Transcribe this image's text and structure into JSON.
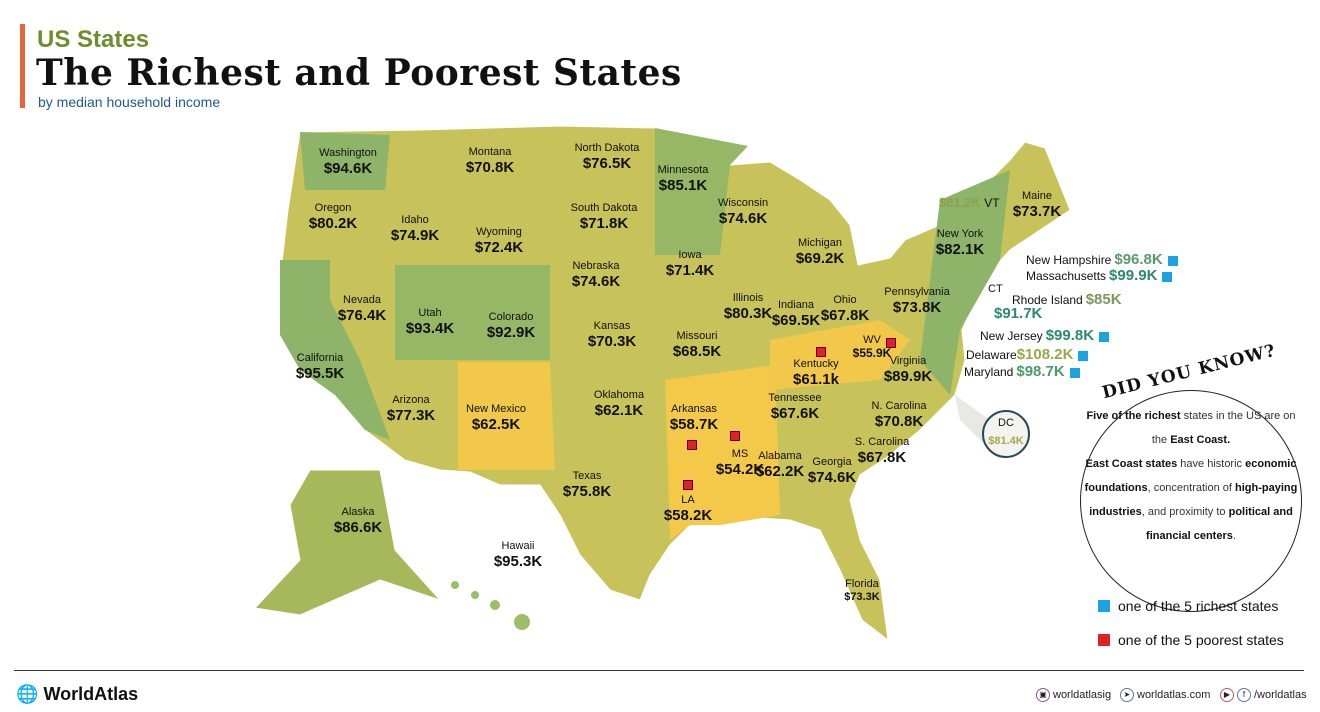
{
  "header": {
    "kicker": "US States",
    "title": "The Richest and Poorest States",
    "subtitle": "by median household income"
  },
  "colors": {
    "olive": "#c8c25a",
    "green": "#8db468",
    "yellow": "#f1c84a",
    "accent": "#e2683a",
    "rich": "#1aa3e0",
    "poor": "#e0202a"
  },
  "states": [
    {
      "name": "Washington",
      "value": "$94.6K"
    },
    {
      "name": "Oregon",
      "value": "$80.2K"
    },
    {
      "name": "California",
      "value": "$95.5K"
    },
    {
      "name": "Nevada",
      "value": "$76.4K"
    },
    {
      "name": "Idaho",
      "value": "$74.9K"
    },
    {
      "name": "Montana",
      "value": "$70.8K"
    },
    {
      "name": "Wyoming",
      "value": "$72.4K"
    },
    {
      "name": "Utah",
      "value": "$93.4K"
    },
    {
      "name": "Colorado",
      "value": "$92.9K"
    },
    {
      "name": "Arizona",
      "value": "$77.3K"
    },
    {
      "name": "New Mexico",
      "value": "$62.5K"
    },
    {
      "name": "North Dakota",
      "value": "$76.5K"
    },
    {
      "name": "South Dakota",
      "value": "$71.8K"
    },
    {
      "name": "Nebraska",
      "value": "$74.6K"
    },
    {
      "name": "Kansas",
      "value": "$70.3K"
    },
    {
      "name": "Oklahoma",
      "value": "$62.1K"
    },
    {
      "name": "Texas",
      "value": "$75.8K"
    },
    {
      "name": "Minnesota",
      "value": "$85.1K"
    },
    {
      "name": "Iowa",
      "value": "$71.4K"
    },
    {
      "name": "Missouri",
      "value": "$68.5K"
    },
    {
      "name": "Arkansas",
      "value": "$58.7K"
    },
    {
      "name": "LA",
      "value": "$58.2K"
    },
    {
      "name": "Wisconsin",
      "value": "$74.6K"
    },
    {
      "name": "Illinois",
      "value": "$80.3K"
    },
    {
      "name": "MS",
      "value": "$54.2K"
    },
    {
      "name": "Michigan",
      "value": "$69.2K"
    },
    {
      "name": "Indiana",
      "value": "$69.5K"
    },
    {
      "name": "Ohio",
      "value": "$67.8K"
    },
    {
      "name": "Kentucky",
      "value": "$61.1k"
    },
    {
      "name": "Tennessee",
      "value": "$67.6K"
    },
    {
      "name": "Alabama",
      "value": "$62.2K"
    },
    {
      "name": "Georgia",
      "value": "$74.6K"
    },
    {
      "name": "Florida",
      "value": "$73.3K"
    },
    {
      "name": "S. Carolina",
      "value": "$67.8K"
    },
    {
      "name": "N. Carolina",
      "value": "$70.8K"
    },
    {
      "name": "Virginia",
      "value": "$89.9K"
    },
    {
      "name": "WV",
      "value": "$55.9K"
    },
    {
      "name": "Pennsylvania",
      "value": "$73.8K"
    },
    {
      "name": "New York",
      "value": "$82.1K"
    },
    {
      "name": "Maine",
      "value": "$73.7K"
    },
    {
      "name": "Alaska",
      "value": "$86.6K"
    },
    {
      "name": "Hawaii",
      "value": "$95.3K"
    }
  ],
  "east_coast": [
    {
      "name": "VT",
      "value": "$81.2K"
    },
    {
      "name": "New Hampshire",
      "value": "$96.8K"
    },
    {
      "name": "Massachusetts",
      "value": "$99.9K"
    },
    {
      "name": "Rhode Island",
      "value": "$85K"
    },
    {
      "name": "CT",
      "value": "$91.7K"
    },
    {
      "name": "New Jersey",
      "value": "$99.8K"
    },
    {
      "name": "Delaware",
      "value": "$108.2K"
    },
    {
      "name": "Maryland",
      "value": "$98.7K"
    },
    {
      "name": "DC",
      "value": "$81.4K"
    }
  ],
  "did_you_know": {
    "title": "DID YOU KNOW?",
    "p1a": "Five of the richest",
    "p1b": " states in the US are on the ",
    "p1c": "East Coast.",
    "p2a": "East Coast states",
    "p2b": " have historic ",
    "p2c": "economic foundations",
    "p2d": ", concentration of ",
    "p2e": "high-paying industries",
    "p2f": ", and proximity to ",
    "p2g": "political and financial centers",
    "p2h": "."
  },
  "legend": {
    "rich": "one of the 5 richest states",
    "poor": "one of the 5 poorest states"
  },
  "footer": {
    "brand": "WorldAtlas",
    "instagram": "worldatlasig",
    "website": "worldatlas.com",
    "social": "/worldatlas"
  }
}
